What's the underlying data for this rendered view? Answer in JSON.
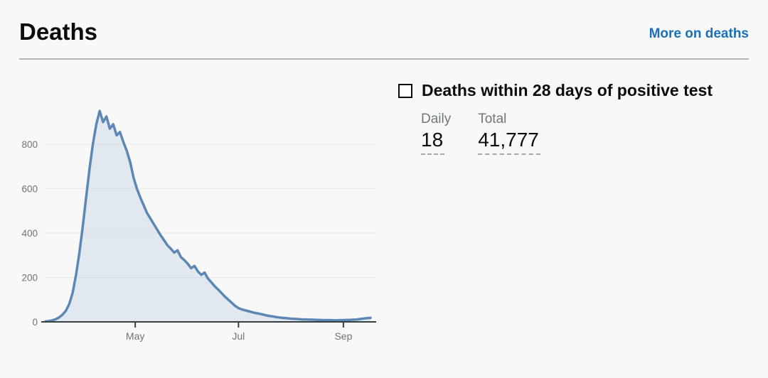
{
  "header": {
    "title": "Deaths",
    "link_label": "More on deaths",
    "link_color": "#1d70b8"
  },
  "panel": {
    "legend_title": "Deaths within 28 days of positive test",
    "metrics": [
      {
        "label": "Daily",
        "value": "18"
      },
      {
        "label": "Total",
        "value": "41,777"
      }
    ]
  },
  "chart_data": {
    "type": "area",
    "title": "Deaths within 28 days of positive test",
    "xlabel": "",
    "ylabel": "",
    "grid": true,
    "legend_position": "right-panel",
    "line_color": "#5d87b5",
    "fill_color": "rgba(93,135,181,0.14)",
    "axis_color": "#383f43",
    "grid_color": "#e9e9e9",
    "tick_label_color": "#6f7276",
    "ylim": [
      0,
      1000
    ],
    "y_ticks": [
      0,
      200,
      400,
      600,
      800
    ],
    "x_ticks": [
      {
        "label": "May",
        "date": "2020-05-01"
      },
      {
        "label": "Jul",
        "date": "2020-07-01"
      },
      {
        "label": "Sep",
        "date": "2020-09-01"
      }
    ],
    "start_date": "2020-03-09",
    "end_date": "2020-09-17",
    "step_days": 2,
    "values": [
      2,
      4,
      7,
      12,
      20,
      32,
      50,
      80,
      130,
      210,
      310,
      430,
      560,
      690,
      800,
      890,
      950,
      900,
      925,
      870,
      890,
      840,
      855,
      810,
      770,
      720,
      650,
      600,
      560,
      525,
      490,
      465,
      440,
      415,
      390,
      368,
      345,
      330,
      312,
      322,
      292,
      278,
      262,
      242,
      252,
      228,
      212,
      222,
      195,
      178,
      160,
      146,
      130,
      114,
      100,
      86,
      72,
      62,
      56,
      52,
      48,
      44,
      40,
      37,
      34,
      30,
      27,
      25,
      22,
      20,
      18,
      17,
      15,
      14,
      13,
      12,
      11,
      11,
      10,
      10,
      9,
      9,
      8,
      8,
      8,
      7,
      7,
      8,
      8,
      9,
      9,
      10,
      11,
      13,
      15,
      17,
      18
    ]
  }
}
